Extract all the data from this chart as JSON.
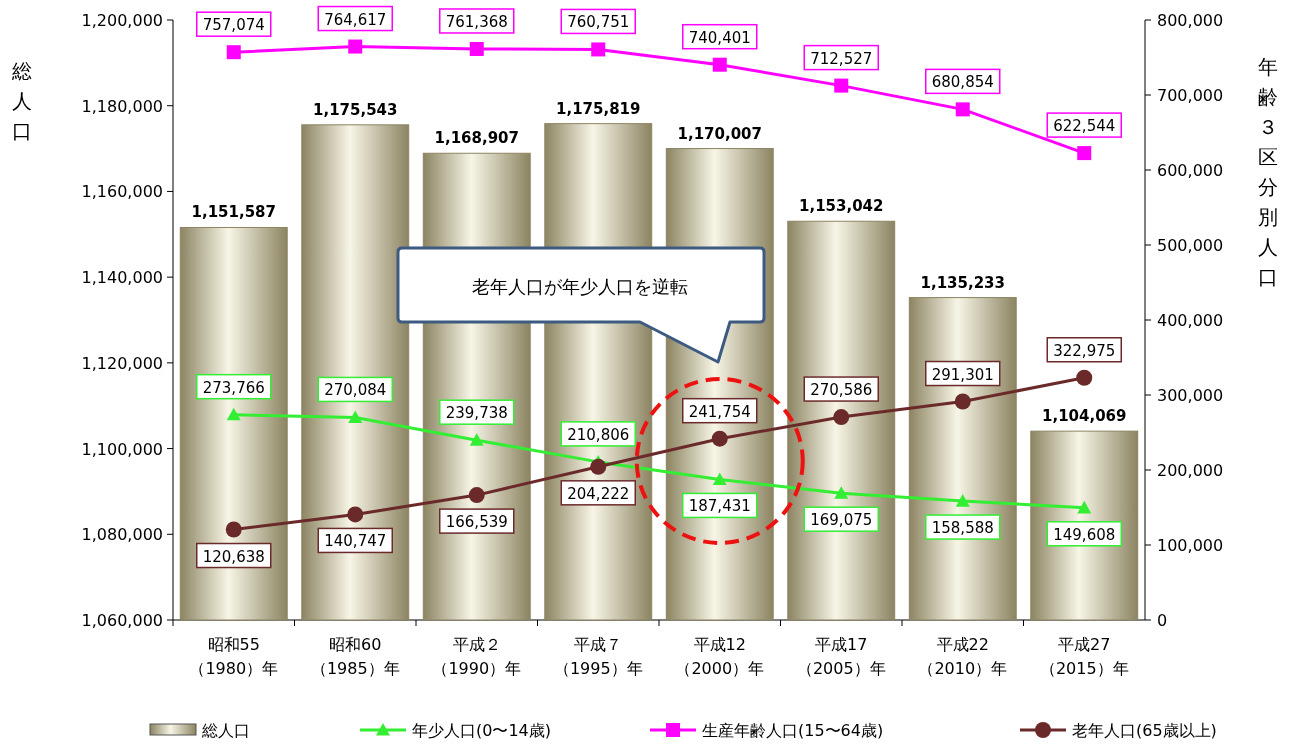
{
  "chart_data": {
    "type": "bar",
    "ylabel": "総人口",
    "y2label": "年齢３区分別人口",
    "categories": [
      "昭和55（1980）年",
      "昭和60（1985）年",
      "平成２（1990）年",
      "平成７（1995）年",
      "平成12（2000）年",
      "平成17（2005）年",
      "平成22（2010）年",
      "平成27（2015）年"
    ],
    "series": [
      {
        "name": "総人口",
        "color": "#8c8462",
        "values": [
          1151587,
          1175543,
          1168907,
          1175819,
          1170007,
          1153042,
          1135233,
          1104069
        ],
        "value_labels": [
          "1,151,587",
          "1,175,543",
          "1,168,907",
          "1,175,819",
          "1,170,007",
          "1,153,042",
          "1,135,233",
          "1,104,069"
        ]
      },
      {
        "name": "年少人口(0〜14歳)",
        "type": "line",
        "axis": "y2",
        "marker": "triangle",
        "color": "#33ee33",
        "values": [
          273766,
          270084,
          239738,
          210806,
          187431,
          169075,
          158588,
          149608
        ],
        "value_labels": [
          "273,766",
          "270,084",
          "239,738",
          "210,806",
          "187,431",
          "169,075",
          "158,588",
          "149,608"
        ]
      },
      {
        "name": "生産年齢人口(15〜64歳)",
        "type": "line",
        "axis": "y2",
        "marker": "square",
        "color": "#ff00ff",
        "values": [
          757074,
          764617,
          761368,
          760751,
          740401,
          712527,
          680854,
          622544
        ],
        "value_labels": [
          "757,074",
          "764,617",
          "761,368",
          "760,751",
          "740,401",
          "712,527",
          "680,854",
          "622,544"
        ]
      },
      {
        "name": "老年人口(65歳以上)",
        "type": "line",
        "axis": "y2",
        "marker": "circle",
        "color": "#6b2a2a",
        "values": [
          120638,
          140747,
          166539,
          204222,
          241754,
          270586,
          291301,
          322975
        ],
        "value_labels": [
          "120,638",
          "140,747",
          "166,539",
          "204,222",
          "241,754",
          "270,586",
          "291,301",
          "322,975"
        ]
      }
    ],
    "ylim": [
      1060000,
      1200000
    ],
    "yticks": [
      {
        "value": 1060000,
        "label": "1,060,000"
      },
      {
        "value": 1080000,
        "label": "1,080,000"
      },
      {
        "value": 1100000,
        "label": "1,100,000"
      },
      {
        "value": 1120000,
        "label": "1,120,000"
      },
      {
        "value": 1140000,
        "label": "1,140,000"
      },
      {
        "value": 1160000,
        "label": "1,160,000"
      },
      {
        "value": 1180000,
        "label": "1,180,000"
      },
      {
        "value": 1200000,
        "label": "1,200,000"
      }
    ],
    "y2lim": [
      0,
      800000
    ],
    "y2ticks": [
      0,
      {
        "value": 100000,
        "label": "100,000"
      },
      {
        "value": 200000,
        "label": "200,000"
      },
      {
        "value": 300000,
        "label": "300,000"
      },
      {
        "value": 400000,
        "label": "400,000"
      },
      {
        "value": 500000,
        "label": "500,000"
      },
      {
        "value": 600000,
        "label": "600,000"
      },
      {
        "value": 700000,
        "label": "700,000"
      },
      {
        "value": 800000,
        "label": "800,000"
      }
    ],
    "legend": "bottom",
    "annotations": [
      "老年人口が年少人口を逆転"
    ]
  }
}
